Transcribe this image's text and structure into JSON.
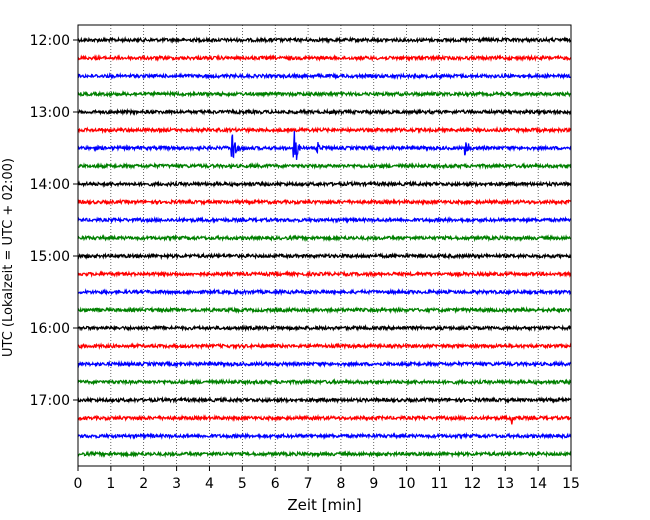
{
  "chart_data": {
    "type": "line",
    "title": "",
    "xlabel": "Zeit  [min]",
    "ylabel": "UTC (Lokalzeit = UTC + 02:00)",
    "xlim": [
      0,
      15
    ],
    "x_ticks": [
      "0",
      "1",
      "2",
      "3",
      "4",
      "5",
      "6",
      "7",
      "8",
      "9",
      "10",
      "11",
      "12",
      "13",
      "14",
      "15"
    ],
    "y_ticks": [
      "12:00",
      "13:00",
      "14:00",
      "15:00",
      "16:00",
      "17:00"
    ],
    "trace_start_times": [
      "12:00",
      "12:15",
      "12:30",
      "12:45",
      "13:00",
      "13:15",
      "13:30",
      "13:45",
      "14:00",
      "14:15",
      "14:30",
      "14:45",
      "15:00",
      "15:15",
      "15:30",
      "15:45",
      "16:00",
      "16:15",
      "16:30",
      "16:45",
      "17:00",
      "17:15",
      "17:30",
      "17:45"
    ],
    "trace_colors": [
      "#000000",
      "#ff0000",
      "#0000ff",
      "#008000"
    ],
    "trace_duration_min": 15,
    "grid": {
      "x": true,
      "y": false,
      "style": "dotted"
    },
    "events": [
      {
        "trace": "13:30",
        "x": 4.7,
        "amplitude": 1.0
      },
      {
        "trace": "13:30",
        "x": 6.6,
        "amplitude": 0.9
      },
      {
        "trace": "13:30",
        "x": 7.3,
        "amplitude": 0.35
      },
      {
        "trace": "13:30",
        "x": 11.8,
        "amplitude": 0.55
      },
      {
        "trace": "17:15",
        "x": 13.2,
        "amplitude": 0.25
      }
    ]
  }
}
